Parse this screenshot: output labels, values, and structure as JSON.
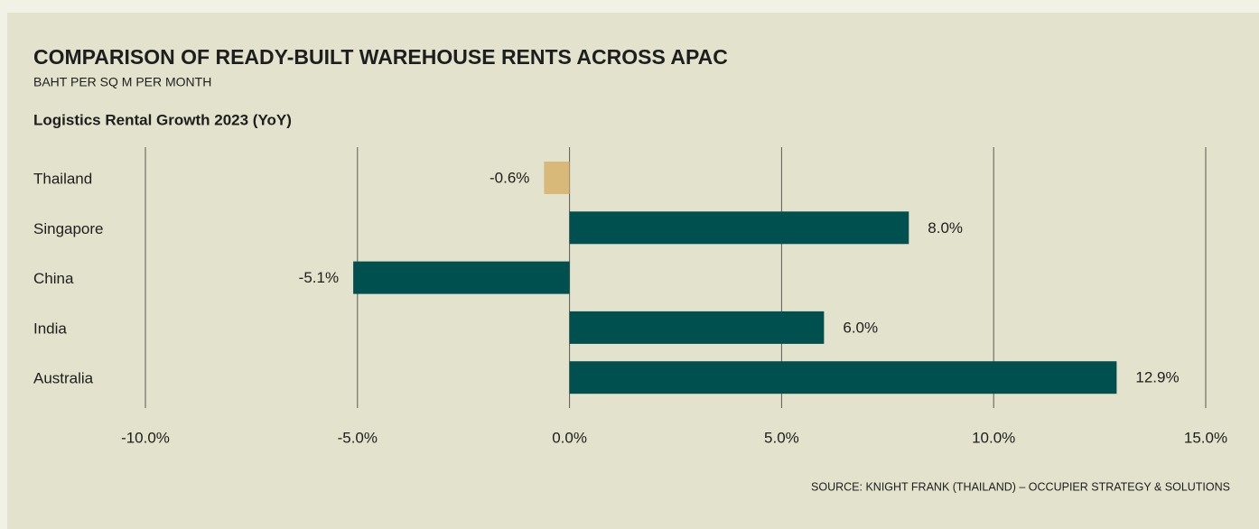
{
  "chart_data": {
    "type": "bar",
    "orientation": "horizontal",
    "title": "COMPARISON OF READY-BUILT WAREHOUSE RENTS ACROSS APAC",
    "subtitle": "BAHT PER SQ M PER MONTH",
    "chart_title": "Logistics Rental Growth 2023 (YoY)",
    "source": "SOURCE: KNIGHT FRANK (THAILAND) – OCCUPIER STRATEGY & SOLUTIONS",
    "categories": [
      "Thailand",
      "Singapore",
      "China",
      "India",
      "Australia"
    ],
    "values": [
      -0.6,
      8.0,
      -5.1,
      6.0,
      12.9
    ],
    "value_labels": [
      "-0.6%",
      "8.0%",
      "-5.1%",
      "6.0%",
      "12.9%"
    ],
    "colors": [
      "#d9b97a",
      "#00504f",
      "#00504f",
      "#00504f",
      "#00504f"
    ],
    "xlim": [
      -10,
      15
    ],
    "xticks": [
      {
        "value": -10,
        "label": "-10.0%"
      },
      {
        "value": -5,
        "label": "-5.0%"
      },
      {
        "value": 0,
        "label": "0.0%"
      },
      {
        "value": 5,
        "label": "5.0%"
      },
      {
        "value": 10,
        "label": "10.0%"
      },
      {
        "value": 15,
        "label": "15.0%"
      }
    ],
    "grid": true
  }
}
